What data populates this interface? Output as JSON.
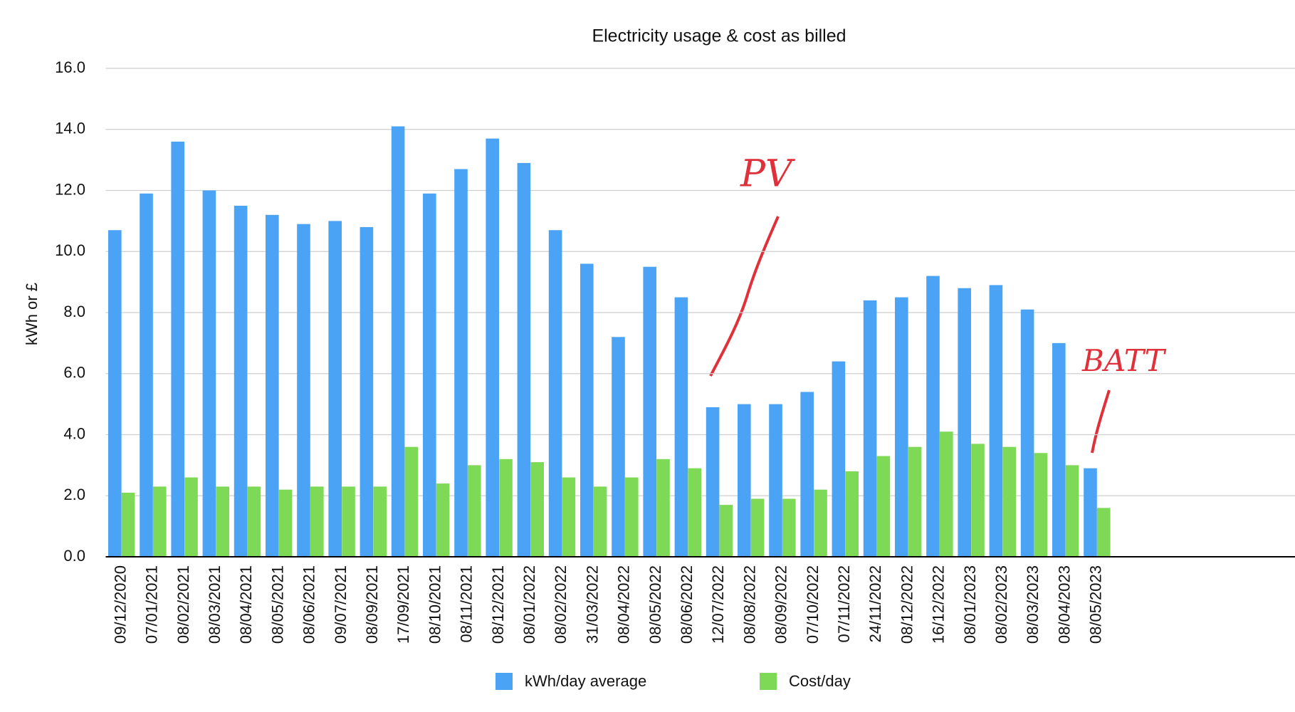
{
  "chart_data": {
    "type": "bar",
    "title": "Electricity usage & cost as billed",
    "y_label": "kWh or £",
    "categories": [
      "09/12/2020",
      "07/01/2021",
      "08/02/2021",
      "08/03/2021",
      "08/04/2021",
      "08/05/2021",
      "08/06/2021",
      "09/07/2021",
      "08/09/2021",
      "17/09/2021",
      "08/10/2021",
      "08/11/2021",
      "08/12/2021",
      "08/01/2022",
      "08/02/2022",
      "31/03/2022",
      "08/04/2022",
      "08/05/2022",
      "08/06/2022",
      "12/07/2022",
      "08/08/2022",
      "08/09/2022",
      "07/10/2022",
      "07/11/2022",
      "24/11/2022",
      "08/12/2022",
      "16/12/2022",
      "08/01/2023",
      "08/02/2023",
      "08/03/2023",
      "08/04/2023",
      "08/05/2023"
    ],
    "series": [
      {
        "name": "kWh/day average",
        "color": "#4aa3f5",
        "values": [
          10.7,
          11.9,
          13.6,
          12.0,
          11.5,
          11.2,
          10.9,
          11.0,
          10.8,
          14.1,
          11.9,
          12.7,
          13.7,
          12.9,
          10.7,
          9.6,
          7.2,
          9.5,
          8.5,
          4.9,
          5.0,
          5.0,
          5.4,
          6.4,
          8.4,
          8.5,
          9.2,
          8.8,
          8.9,
          8.1,
          7.0,
          2.9
        ]
      },
      {
        "name": "Cost/day",
        "color": "#7ed957",
        "values": [
          2.1,
          2.3,
          2.6,
          2.3,
          2.3,
          2.2,
          2.3,
          2.3,
          2.3,
          3.6,
          2.4,
          3.0,
          3.2,
          3.1,
          2.6,
          2.3,
          2.6,
          3.2,
          2.9,
          1.7,
          1.9,
          1.9,
          2.2,
          2.8,
          3.3,
          3.6,
          4.1,
          3.7,
          3.6,
          3.4,
          3.0,
          1.6
        ]
      }
    ],
    "ylim": [
      0,
      16
    ],
    "yticks": [
      {
        "value": 0,
        "label": "0.0"
      },
      {
        "value": 2,
        "label": "2.0"
      },
      {
        "value": 4,
        "label": "4.0"
      },
      {
        "value": 6,
        "label": "6.0"
      },
      {
        "value": 8,
        "label": "8.0"
      },
      {
        "value": 10,
        "label": "10.0"
      },
      {
        "value": 12,
        "label": "12.0"
      },
      {
        "value": 14,
        "label": "14.0"
      },
      {
        "value": 16,
        "label": "16.0"
      }
    ],
    "grid": true,
    "legend": "bottom",
    "annotations": [
      "PV",
      "BATT"
    ]
  }
}
